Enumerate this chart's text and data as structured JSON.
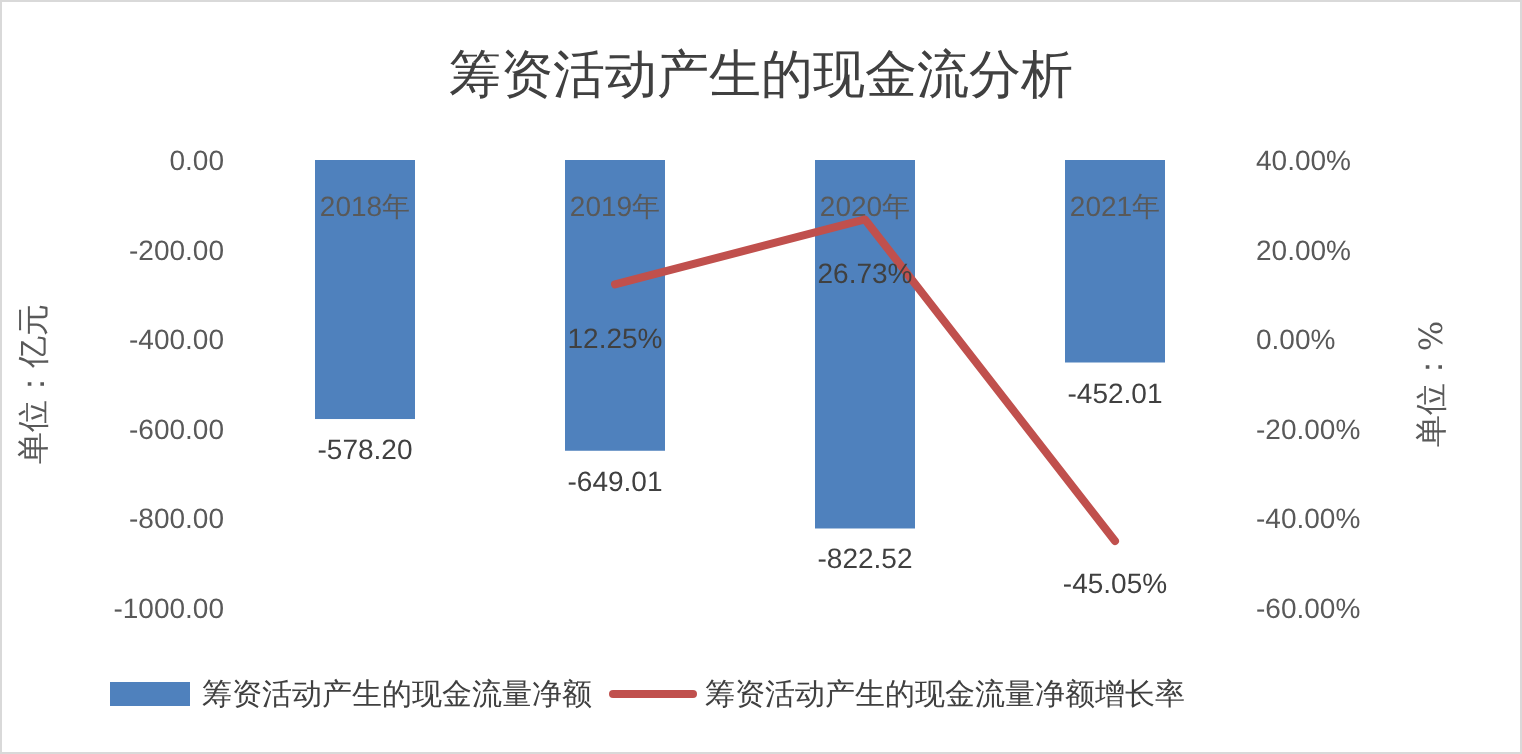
{
  "chart_data": {
    "type": "bar",
    "title": "筹资活动产生的现金流分析",
    "ylabel": "单位：亿元",
    "y2label": "单位：%",
    "categories": [
      "2018年",
      "2019年",
      "2020年",
      "2021年"
    ],
    "series": [
      {
        "name": "筹资活动产生的现金流量净额",
        "color": "#4f81bd",
        "values": [
          -578.2,
          -649.01,
          -822.52,
          -452.01
        ],
        "value_labels": [
          "-578.20",
          "-649.01",
          "-822.52",
          "-452.01"
        ]
      },
      {
        "name": "筹资活动产生的现金流量净额增长率",
        "type": "line",
        "axis": "y2",
        "color": "#c0504d",
        "values": [
          null,
          12.25,
          26.73,
          -45.05
        ],
        "value_labels": [
          null,
          "12.25%",
          "26.73%",
          "-45.05%"
        ]
      }
    ],
    "ylim": [
      -1000,
      0
    ],
    "yticks": [
      {
        "value": 0,
        "label": "0.00"
      },
      {
        "value": -200,
        "label": "-200.00"
      },
      {
        "value": -400,
        "label": "-400.00"
      },
      {
        "value": -600,
        "label": "-600.00"
      },
      {
        "value": -800,
        "label": "-800.00"
      },
      {
        "value": -1000,
        "label": "-1000.00"
      }
    ],
    "y2lim": [
      -60,
      40
    ],
    "y2ticks": [
      {
        "value": 40,
        "label": "40.00%"
      },
      {
        "value": 20,
        "label": "20.00%"
      },
      {
        "value": 0,
        "label": "0.00%"
      },
      {
        "value": -20,
        "label": "-20.00%"
      },
      {
        "value": -40,
        "label": "-40.00%"
      },
      {
        "value": -60,
        "label": "-60.00%"
      }
    ],
    "grid": false,
    "legend": "bottom",
    "marker": "none",
    "line_style": "solid"
  }
}
